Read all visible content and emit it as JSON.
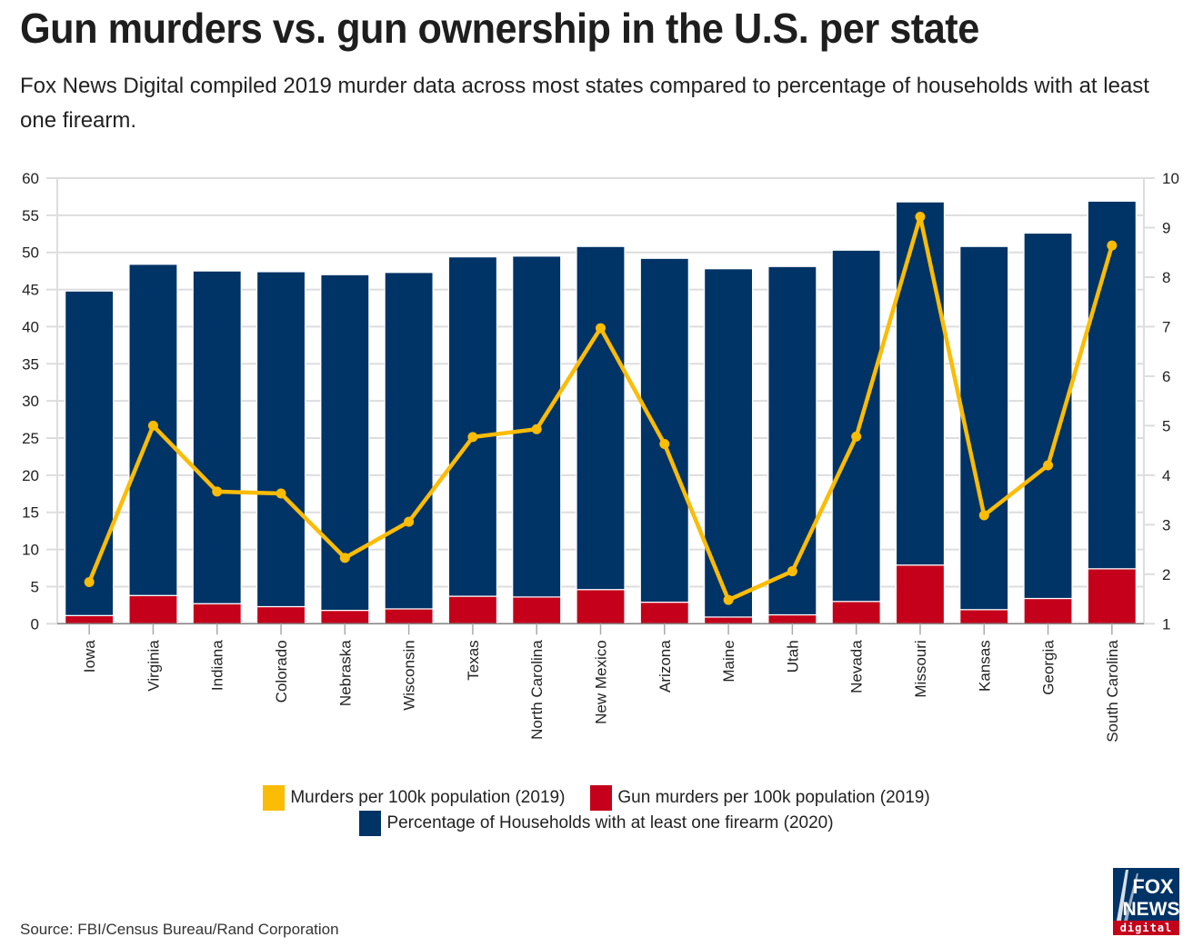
{
  "header": {
    "title": "Gun murders vs. gun ownership in the U.S. per state",
    "subtitle": "Fox News Digital compiled 2019 murder data across most states compared to percentage of households with at least one firearm."
  },
  "footer": {
    "source": "Source: FBI/Census Bureau/Rand Corporation",
    "logo_top": "FOX",
    "logo_middle": "NEWS",
    "logo_bottom": "digital"
  },
  "colors": {
    "ownership": "#003366",
    "gun_murders": "#c4001a",
    "murders": "#fbbc05",
    "grid": "#dddddd"
  },
  "chart_data": {
    "type": "bar",
    "stacked": true,
    "title": "Gun murders vs. gun ownership in the U.S. per state",
    "xlabel": "",
    "ylabel_left": "",
    "ylabel_right": "",
    "categories": [
      "Iowa",
      "Virginia",
      "Indiana",
      "Colorado",
      "Nebraska",
      "Wisconsin",
      "Texas",
      "North Carolina",
      "New Mexico",
      "Arizona",
      "Maine",
      "Utah",
      "Nevada",
      "Missouri",
      "Kansas",
      "Georgia",
      "South Carolina"
    ],
    "ylim_left": [
      0,
      60
    ],
    "yticks_left": [
      0,
      5,
      10,
      15,
      20,
      25,
      30,
      35,
      40,
      45,
      50,
      55,
      60
    ],
    "ylim_right": [
      1,
      10
    ],
    "yticks_right": [
      1,
      2,
      3,
      4,
      5,
      6,
      7,
      8,
      9,
      10
    ],
    "grid": true,
    "legend_position": "bottom",
    "series": [
      {
        "name": "Gun murders per 100k population (2019)",
        "type": "bar",
        "axis": "left",
        "stack_order": 0,
        "values": [
          1.1,
          3.8,
          2.7,
          2.3,
          1.8,
          2.0,
          3.7,
          3.6,
          4.6,
          2.9,
          0.9,
          1.2,
          3.0,
          7.9,
          1.9,
          3.4,
          7.4
        ]
      },
      {
        "name": "Percentage of Households with at least one firearm (2020)",
        "type": "bar",
        "axis": "left",
        "stack_order": 1,
        "values": [
          43.7,
          44.6,
          44.8,
          45.1,
          45.2,
          45.3,
          45.7,
          45.9,
          46.2,
          46.3,
          46.9,
          46.9,
          47.3,
          48.9,
          48.9,
          49.2,
          49.5
        ]
      },
      {
        "name": "Murders per 100k population (2019)",
        "type": "line",
        "axis": "right",
        "values": [
          1.84,
          5.0,
          3.67,
          3.63,
          2.33,
          3.06,
          4.77,
          4.93,
          6.97,
          4.63,
          1.48,
          2.06,
          4.78,
          9.22,
          3.19,
          4.2,
          8.64
        ]
      }
    ]
  },
  "legend": {
    "murders": "Murders per 100k population (2019)",
    "gun_murders": "Gun murders per 100k population (2019)",
    "ownership": "Percentage of Households with at least one firearm (2020)"
  }
}
